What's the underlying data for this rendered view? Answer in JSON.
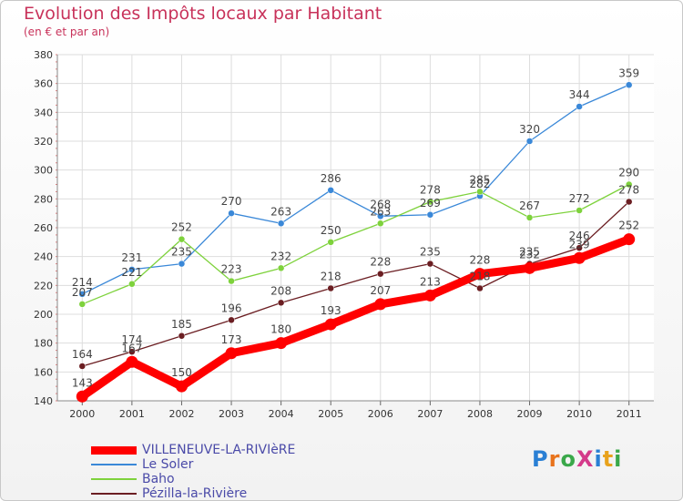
{
  "title": "Evolution des Impôts locaux par Habitant",
  "subtitle": "(en € et par an)",
  "logo": "ProXiti",
  "chart_data": {
    "type": "line",
    "categories": [
      "2000",
      "2001",
      "2002",
      "2003",
      "2004",
      "2005",
      "2006",
      "2007",
      "2008",
      "2009",
      "2010",
      "2011"
    ],
    "ylim": [
      140,
      380
    ],
    "yticks": [
      140,
      160,
      180,
      200,
      220,
      240,
      260,
      280,
      300,
      320,
      340,
      360,
      380
    ],
    "grid": true,
    "legend_position": "bottom-left",
    "series": [
      {
        "name": "VILLENEUVE-LA-RIVIèRE",
        "color": "#ff0000",
        "emphasis": true,
        "values": [
          143,
          167,
          150,
          173,
          180,
          193,
          207,
          213,
          228,
          232,
          239,
          252
        ],
        "labels": [
          "143",
          "167",
          "150",
          "173",
          "180",
          "193",
          "207",
          "213",
          "228",
          "232",
          "239",
          "252"
        ]
      },
      {
        "name": "Le Soler",
        "color": "#3a88d8",
        "emphasis": false,
        "values": [
          214,
          231,
          235,
          270,
          263,
          286,
          268,
          269,
          282,
          320,
          344,
          359
        ],
        "labels": [
          "214",
          "231",
          "235",
          "270",
          "263",
          "286",
          "268",
          "269",
          "282",
          "320",
          "344",
          "359"
        ]
      },
      {
        "name": "Baho",
        "color": "#7ed23c",
        "emphasis": false,
        "values": [
          207,
          221,
          252,
          223,
          232,
          250,
          263,
          278,
          285,
          267,
          272,
          290
        ],
        "labels": [
          "207",
          "221",
          "252",
          "223",
          "232",
          "250",
          "263",
          "278",
          "285",
          "267",
          "272",
          "290"
        ]
      },
      {
        "name": "Pézilla-la-Rivière",
        "color": "#6b1e22",
        "emphasis": false,
        "values": [
          164,
          174,
          185,
          196,
          208,
          218,
          228,
          235,
          218,
          235,
          246,
          278
        ],
        "labels": [
          "164",
          "174",
          "185",
          "196",
          "208",
          "218",
          "228",
          "235",
          "218",
          "235",
          "246",
          "278"
        ]
      }
    ]
  },
  "colors": {
    "title": "#c8325a",
    "axis_text": "#333333",
    "grid": "#dddddd",
    "legend_text": "#4a4aa8"
  }
}
